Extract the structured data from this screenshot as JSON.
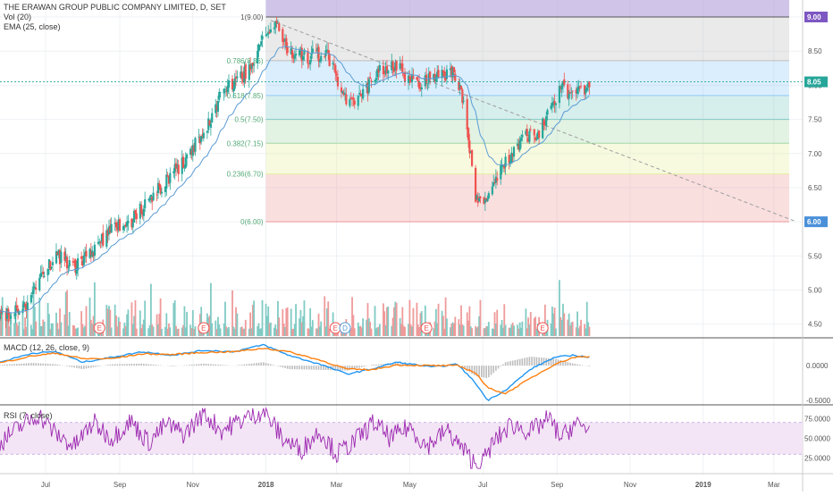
{
  "header": {
    "title": "THE ERAWAN GROUP PUBLIC COMPANY LIMITED, D, SET",
    "vol_label": "Vol (20)",
    "ema_label": "EMA (25, close)"
  },
  "colors": {
    "up": "#26a69a",
    "down": "#ef5350",
    "ema": "#5b9bd5",
    "macd": "#2196f3",
    "signal": "#ff7f0e",
    "rsi": "#9c27b0",
    "rsi_band": "#f3e5f5",
    "trend": "#9e9e9e",
    "current": "#4a90d9"
  },
  "chart_data": [
    {
      "type": "candlestick",
      "name": "price",
      "x_range": [
        "2017-05-24",
        "2019-03-25"
      ],
      "y_range": [
        4.3,
        9.0
      ],
      "y_ticks": [
        4.5,
        5.0,
        5.5,
        6.0,
        6.5,
        7.0,
        7.5,
        8.0,
        8.5,
        9.0
      ],
      "y_tick_labels": [
        "4.50",
        "5.00",
        "5.50",
        "6.00",
        "6.50",
        "7.00",
        "7.50",
        "8.00",
        "8.50",
        "9.00"
      ],
      "x_ticks": [
        "2017-07-01",
        "2017-09-01",
        "2017-11-01",
        "2018-01-01",
        "2018-03-01",
        "2018-05-01",
        "2018-07-01",
        "2018-09-01",
        "2018-11-01",
        "2019-01-01",
        "2019-03-01"
      ],
      "x_tick_labels": [
        "Jul",
        "Sep",
        "Nov",
        "2018",
        "Mar",
        "May",
        "Jul",
        "Sep",
        "Nov",
        "2019",
        "Mar"
      ],
      "path": [
        [
          "2017-05-24",
          4.6
        ],
        [
          "2017-06-15",
          4.75
        ],
        [
          "2017-06-28",
          5.2
        ],
        [
          "2017-07-10",
          5.5
        ],
        [
          "2017-07-25",
          5.35
        ],
        [
          "2017-08-10",
          5.6
        ],
        [
          "2017-08-25",
          5.9
        ],
        [
          "2017-09-10",
          6.0
        ],
        [
          "2017-09-25",
          6.3
        ],
        [
          "2017-10-10",
          6.6
        ],
        [
          "2017-10-25",
          6.9
        ],
        [
          "2017-11-10",
          7.3
        ],
        [
          "2017-11-25",
          7.9
        ],
        [
          "2017-12-10",
          8.1
        ],
        [
          "2017-12-22",
          8.3
        ],
        [
          "2017-12-30",
          8.7
        ],
        [
          "2018-01-10",
          8.9
        ],
        [
          "2018-01-20",
          8.5
        ],
        [
          "2018-02-05",
          8.4
        ],
        [
          "2018-02-20",
          8.5
        ],
        [
          "2018-03-01",
          8.1
        ],
        [
          "2018-03-10",
          7.7
        ],
        [
          "2018-03-20",
          7.8
        ],
        [
          "2018-04-05",
          8.2
        ],
        [
          "2018-04-20",
          8.3
        ],
        [
          "2018-05-05",
          8.0
        ],
        [
          "2018-05-20",
          8.1
        ],
        [
          "2018-06-05",
          8.2
        ],
        [
          "2018-06-15",
          7.8
        ],
        [
          "2018-06-25",
          6.4
        ],
        [
          "2018-07-05",
          6.3
        ],
        [
          "2018-07-15",
          6.7
        ],
        [
          "2018-07-25",
          7.0
        ],
        [
          "2018-08-05",
          7.3
        ],
        [
          "2018-08-15",
          7.2
        ],
        [
          "2018-08-25",
          7.6
        ],
        [
          "2018-09-05",
          8.0
        ],
        [
          "2018-09-15",
          7.8
        ],
        [
          "2018-09-28",
          8.05
        ]
      ],
      "current_price": 8.05,
      "current_price_label": "8.05",
      "fibonacci": {
        "start": "2018-01-01",
        "levels": [
          {
            "ratio": 1,
            "price": 9.0,
            "label": "1(9.00)",
            "color": "#b39ddb"
          },
          {
            "ratio": 0.786,
            "price": 8.36,
            "label": "0.786(8.36)",
            "color": "#bdbdbd"
          },
          {
            "ratio": 0.618,
            "price": 7.85,
            "label": "0.618(7.85)",
            "color": "#90caf9"
          },
          {
            "ratio": 0.5,
            "price": 7.5,
            "label": "0.5(7.50)",
            "color": "#80cbc4"
          },
          {
            "ratio": 0.382,
            "price": 7.15,
            "label": "0.382(7.15)",
            "color": "#a5d6a7"
          },
          {
            "ratio": 0.236,
            "price": 6.7,
            "label": "0.236(6.70)",
            "color": "#e6ee9c"
          },
          {
            "ratio": 0,
            "price": 6.0,
            "label": "0(6.00)",
            "color": "#ef9a9a"
          }
        ],
        "top_band_label": "9.00",
        "bottom_band_label": "6.00"
      },
      "trendline": [
        [
          "2018-01-05",
          8.95
        ],
        [
          "2019-03-20",
          6.0
        ]
      ],
      "earnings_markers": [
        {
          "date": "2017-08-15",
          "label": "E"
        },
        {
          "date": "2017-11-10",
          "label": "E"
        },
        {
          "date": "2018-02-28",
          "label": "E"
        },
        {
          "date": "2018-03-08",
          "label": "D"
        },
        {
          "date": "2018-05-15",
          "label": "E"
        },
        {
          "date": "2018-08-20",
          "label": "E"
        }
      ]
    },
    {
      "type": "line",
      "name": "MACD (12, 26, close, 9)",
      "legend": "MACD (12, 26, close, 9)",
      "y_range": [
        -0.55,
        0.4
      ],
      "y_ticks": [
        0.0,
        -0.5
      ],
      "y_tick_labels": [
        "0.0000",
        "-0.5000"
      ],
      "macd": [
        [
          "2017-05-24",
          0.05
        ],
        [
          "2017-06-20",
          0.18
        ],
        [
          "2017-07-10",
          0.2
        ],
        [
          "2017-08-01",
          0.05
        ],
        [
          "2017-08-25",
          0.12
        ],
        [
          "2017-09-20",
          0.2
        ],
        [
          "2017-10-15",
          0.15
        ],
        [
          "2017-11-10",
          0.22
        ],
        [
          "2017-12-05",
          0.2
        ],
        [
          "2017-12-30",
          0.3
        ],
        [
          "2018-01-20",
          0.15
        ],
        [
          "2018-02-15",
          0.02
        ],
        [
          "2018-03-10",
          -0.12
        ],
        [
          "2018-03-30",
          -0.05
        ],
        [
          "2018-04-20",
          0.05
        ],
        [
          "2018-05-20",
          -0.02
        ],
        [
          "2018-06-10",
          0.02
        ],
        [
          "2018-06-25",
          -0.25
        ],
        [
          "2018-07-05",
          -0.5
        ],
        [
          "2018-07-20",
          -0.35
        ],
        [
          "2018-08-10",
          -0.05
        ],
        [
          "2018-08-30",
          0.12
        ],
        [
          "2018-09-15",
          0.15
        ],
        [
          "2018-09-28",
          0.12
        ]
      ],
      "signal": [
        [
          "2017-05-24",
          0.04
        ],
        [
          "2017-06-20",
          0.14
        ],
        [
          "2017-07-10",
          0.18
        ],
        [
          "2017-08-01",
          0.1
        ],
        [
          "2017-08-25",
          0.1
        ],
        [
          "2017-09-20",
          0.17
        ],
        [
          "2017-10-15",
          0.16
        ],
        [
          "2017-11-10",
          0.19
        ],
        [
          "2017-12-05",
          0.2
        ],
        [
          "2017-12-30",
          0.25
        ],
        [
          "2018-01-20",
          0.2
        ],
        [
          "2018-02-15",
          0.08
        ],
        [
          "2018-03-10",
          -0.05
        ],
        [
          "2018-03-30",
          -0.06
        ],
        [
          "2018-04-20",
          0.01
        ],
        [
          "2018-05-20",
          0.0
        ],
        [
          "2018-06-10",
          0.0
        ],
        [
          "2018-06-25",
          -0.1
        ],
        [
          "2018-07-05",
          -0.32
        ],
        [
          "2018-07-20",
          -0.4
        ],
        [
          "2018-08-10",
          -0.18
        ],
        [
          "2018-08-30",
          0.02
        ],
        [
          "2018-09-15",
          0.12
        ],
        [
          "2018-09-28",
          0.13
        ]
      ]
    },
    {
      "type": "line",
      "name": "RSI (7, close)",
      "legend": "RSI (7, close)",
      "y_range": [
        10,
        90
      ],
      "band": [
        30,
        70
      ],
      "y_ticks": [
        75,
        50,
        25
      ],
      "y_tick_labels": [
        "75.0000",
        "50.0000",
        "25.0000"
      ],
      "values": [
        [
          "2017-05-24",
          45
        ],
        [
          "2017-06-10",
          65
        ],
        [
          "2017-06-25",
          80
        ],
        [
          "2017-07-10",
          55
        ],
        [
          "2017-07-25",
          40
        ],
        [
          "2017-08-10",
          70
        ],
        [
          "2017-08-25",
          50
        ],
        [
          "2017-09-10",
          72
        ],
        [
          "2017-09-25",
          45
        ],
        [
          "2017-10-10",
          68
        ],
        [
          "2017-10-25",
          55
        ],
        [
          "2017-11-10",
          82
        ],
        [
          "2017-11-25",
          60
        ],
        [
          "2017-12-10",
          72
        ],
        [
          "2017-12-30",
          85
        ],
        [
          "2018-01-15",
          50
        ],
        [
          "2018-01-30",
          35
        ],
        [
          "2018-02-15",
          60
        ],
        [
          "2018-03-01",
          30
        ],
        [
          "2018-03-15",
          45
        ],
        [
          "2018-04-01",
          70
        ],
        [
          "2018-04-15",
          50
        ],
        [
          "2018-05-01",
          65
        ],
        [
          "2018-05-15",
          40
        ],
        [
          "2018-06-01",
          60
        ],
        [
          "2018-06-15",
          35
        ],
        [
          "2018-06-28",
          12
        ],
        [
          "2018-07-10",
          45
        ],
        [
          "2018-07-25",
          68
        ],
        [
          "2018-08-10",
          58
        ],
        [
          "2018-08-25",
          75
        ],
        [
          "2018-09-05",
          50
        ],
        [
          "2018-09-15",
          68
        ],
        [
          "2018-09-28",
          62
        ]
      ]
    }
  ]
}
